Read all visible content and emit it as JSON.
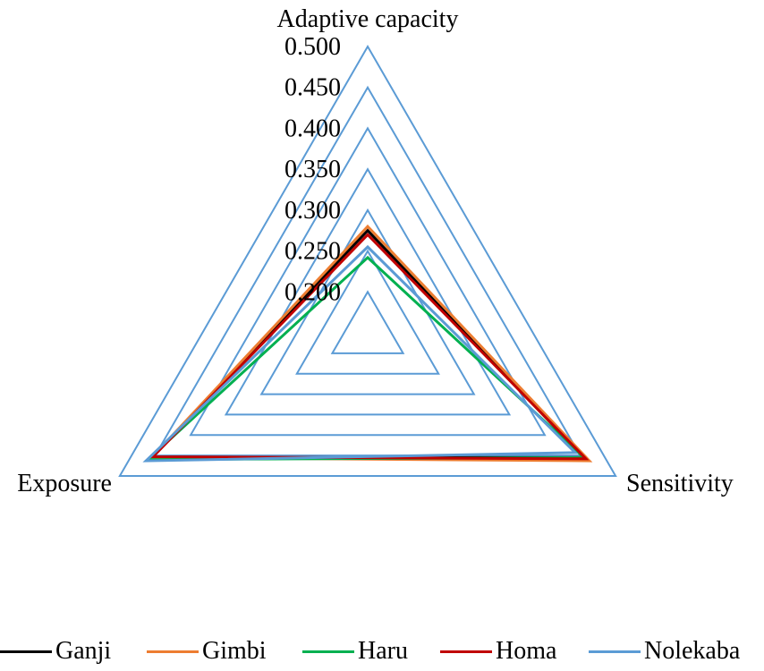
{
  "chart_data": {
    "type": "radar",
    "axes": [
      "Adaptive capacity",
      "Sensitivity",
      "Exposure"
    ],
    "rlim": [
      0.15,
      0.5
    ],
    "ticks": [
      "0.500",
      "0.450",
      "0.400",
      "0.350",
      "0.300",
      "0.250",
      "0.200"
    ],
    "tick_values": [
      0.5,
      0.45,
      0.4,
      0.35,
      0.3,
      0.25,
      0.2
    ],
    "grid_color": "#5b9bd5",
    "legend_position": "bottom",
    "series": [
      {
        "name": "Ganji",
        "color": "#000000",
        "values": [
          0.275,
          0.455,
          0.455
        ]
      },
      {
        "name": "Gimbi",
        "color": "#ed7d31",
        "values": [
          0.28,
          0.463,
          0.455
        ]
      },
      {
        "name": "Haru",
        "color": "#00b050",
        "values": [
          0.242,
          0.455,
          0.46
        ]
      },
      {
        "name": "Homa",
        "color": "#c00000",
        "values": [
          0.27,
          0.458,
          0.453
        ]
      },
      {
        "name": "Nolekaba",
        "color": "#5b9bd5",
        "values": [
          0.255,
          0.443,
          0.463
        ]
      }
    ]
  }
}
